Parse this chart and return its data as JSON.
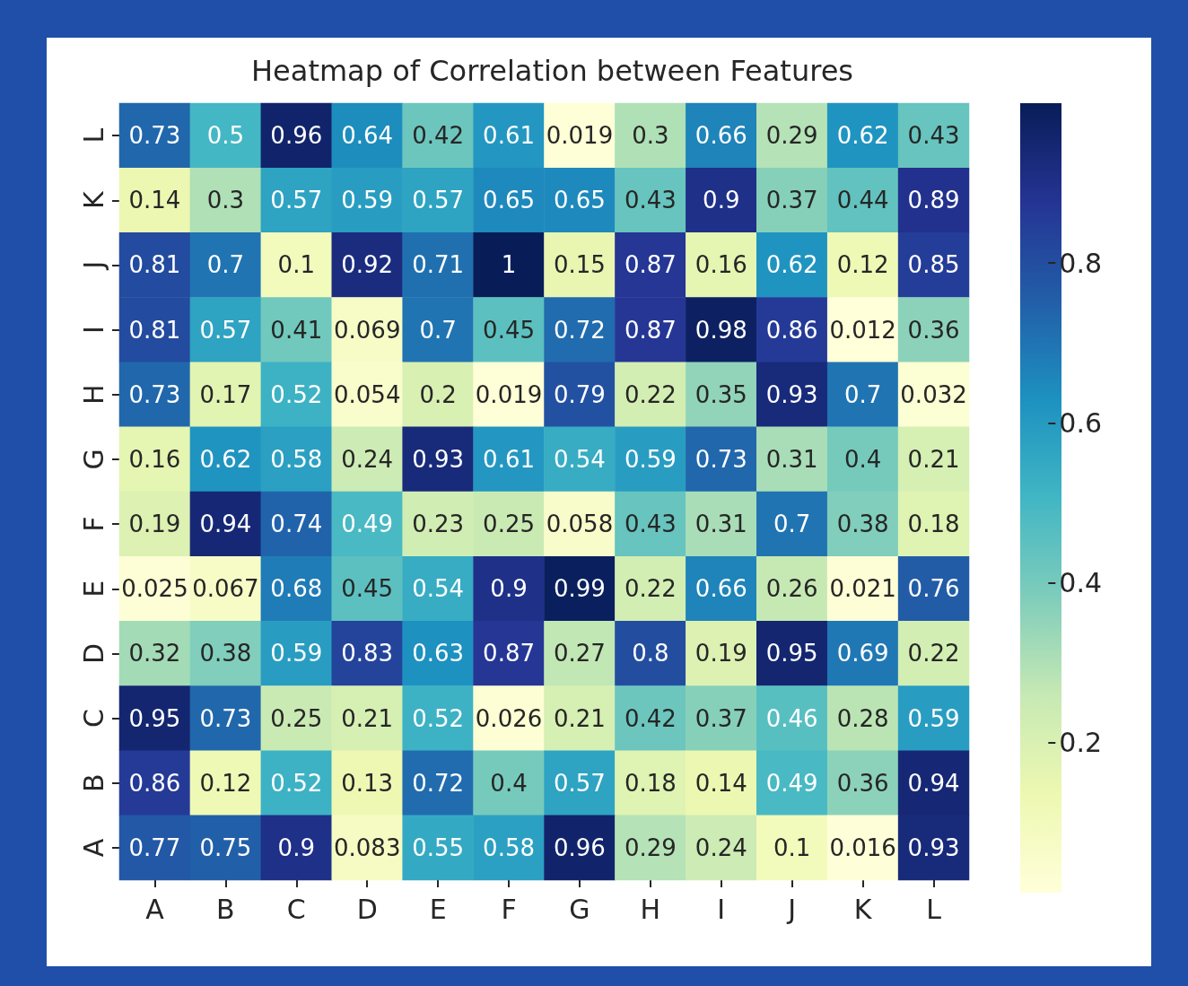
{
  "chart_data": {
    "type": "heatmap",
    "title": "Heatmap of Correlation between Features",
    "categories": [
      "A",
      "B",
      "C",
      "D",
      "E",
      "F",
      "G",
      "H",
      "I",
      "J",
      "K",
      "L"
    ],
    "y_categories": [
      "L",
      "K",
      "J",
      "I",
      "H",
      "G",
      "F",
      "E",
      "D",
      "C",
      "B",
      "A"
    ],
    "cells": [
      [
        0.73,
        0.5,
        0.96,
        0.64,
        0.42,
        0.61,
        0.019,
        0.3,
        0.66,
        0.29,
        0.62,
        0.43
      ],
      [
        0.14,
        0.3,
        0.57,
        0.59,
        0.57,
        0.65,
        0.65,
        0.43,
        0.9,
        0.37,
        0.44,
        0.89
      ],
      [
        0.81,
        0.7,
        0.1,
        0.92,
        0.71,
        1,
        0.15,
        0.87,
        0.16,
        0.62,
        0.12,
        0.85
      ],
      [
        0.81,
        0.57,
        0.41,
        0.069,
        0.7,
        0.45,
        0.72,
        0.87,
        0.98,
        0.86,
        0.012,
        0.36
      ],
      [
        0.73,
        0.17,
        0.52,
        0.054,
        0.2,
        0.019,
        0.79,
        0.22,
        0.35,
        0.93,
        0.7,
        0.032
      ],
      [
        0.16,
        0.62,
        0.58,
        0.24,
        0.93,
        0.61,
        0.54,
        0.59,
        0.73,
        0.31,
        0.4,
        0.21
      ],
      [
        0.19,
        0.94,
        0.74,
        0.49,
        0.23,
        0.25,
        0.058,
        0.43,
        0.31,
        0.7,
        0.38,
        0.18
      ],
      [
        0.025,
        0.067,
        0.68,
        0.45,
        0.54,
        0.9,
        0.99,
        0.22,
        0.66,
        0.26,
        0.021,
        0.76
      ],
      [
        0.32,
        0.38,
        0.59,
        0.83,
        0.63,
        0.87,
        0.27,
        0.8,
        0.19,
        0.95,
        0.69,
        0.22
      ],
      [
        0.95,
        0.73,
        0.25,
        0.21,
        0.52,
        0.026,
        0.21,
        0.42,
        0.37,
        0.46,
        0.28,
        0.59
      ],
      [
        0.86,
        0.12,
        0.52,
        0.13,
        0.72,
        0.4,
        0.57,
        0.18,
        0.14,
        0.49,
        0.36,
        0.94
      ],
      [
        0.77,
        0.75,
        0.9,
        0.083,
        0.55,
        0.58,
        0.96,
        0.29,
        0.24,
        0.1,
        0.016,
        0.93
      ]
    ],
    "clim": [
      0.012,
      1
    ],
    "cticks": [
      0.2,
      0.4,
      0.6,
      0.8
    ],
    "data_labels": true
  }
}
